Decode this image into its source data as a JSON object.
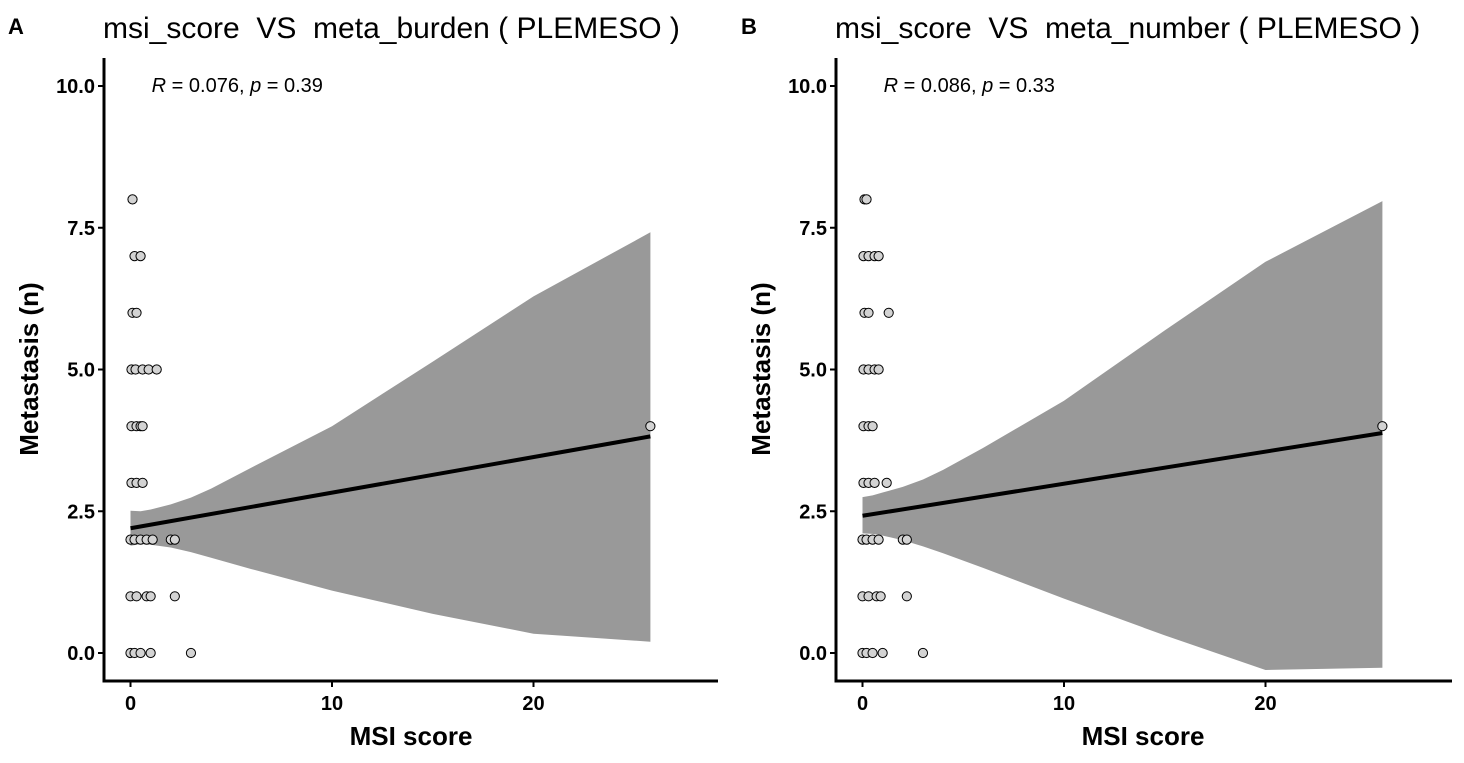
{
  "chart_data": [
    {
      "type": "scatter",
      "panel": "A",
      "title": "msi_score  VS  meta_burden ( PLEMESO )",
      "xlabel": "MSI score",
      "ylabel": "Metastasis (n)",
      "xlim": [
        -1.3,
        29
      ],
      "ylim": [
        -0.45,
        10.4
      ],
      "xticks": [
        0,
        10,
        20
      ],
      "xtick_labels": [
        "0",
        "10",
        "20"
      ],
      "yticks": [
        0,
        2.5,
        5,
        7.5,
        10
      ],
      "ytick_labels": [
        "0.0",
        "2.5",
        "5.0",
        "7.5",
        "10.0"
      ],
      "grid": false,
      "annotation": {
        "r_label": "R",
        "r_value": " = 0.076, ",
        "p_label": "p",
        "p_value": " = 0.39"
      },
      "points": [
        {
          "x": 0.1,
          "y": 8
        },
        {
          "x": 0.2,
          "y": 7
        },
        {
          "x": 0.5,
          "y": 7
        },
        {
          "x": 0.1,
          "y": 6
        },
        {
          "x": 0.3,
          "y": 6
        },
        {
          "x": 0.05,
          "y": 5
        },
        {
          "x": 0.25,
          "y": 5
        },
        {
          "x": 0.6,
          "y": 5
        },
        {
          "x": 0.9,
          "y": 5
        },
        {
          "x": 1.3,
          "y": 5
        },
        {
          "x": 0.05,
          "y": 4
        },
        {
          "x": 0.3,
          "y": 4
        },
        {
          "x": 0.5,
          "y": 4
        },
        {
          "x": 0.6,
          "y": 4
        },
        {
          "x": 0.05,
          "y": 3
        },
        {
          "x": 0.3,
          "y": 3
        },
        {
          "x": 0.6,
          "y": 3
        },
        {
          "x": 0.0,
          "y": 2
        },
        {
          "x": 0.2,
          "y": 2
        },
        {
          "x": 0.5,
          "y": 2
        },
        {
          "x": 0.8,
          "y": 2
        },
        {
          "x": 1.1,
          "y": 2
        },
        {
          "x": 2.0,
          "y": 2
        },
        {
          "x": 2.2,
          "y": 2
        },
        {
          "x": 0.0,
          "y": 1
        },
        {
          "x": 0.3,
          "y": 1
        },
        {
          "x": 0.8,
          "y": 1
        },
        {
          "x": 1.0,
          "y": 1
        },
        {
          "x": 2.2,
          "y": 1
        },
        {
          "x": 0.0,
          "y": 0
        },
        {
          "x": 0.2,
          "y": 0
        },
        {
          "x": 0.5,
          "y": 0
        },
        {
          "x": 1.0,
          "y": 0
        },
        {
          "x": 3.0,
          "y": 0
        },
        {
          "x": 25.8,
          "y": 4
        }
      ],
      "fit": {
        "x": [
          0,
          25.8
        ],
        "y": [
          2.2,
          3.82
        ]
      },
      "ci_band": {
        "x": [
          0,
          0.5,
          1,
          2,
          3,
          4,
          6,
          10,
          15,
          20,
          25.8
        ],
        "lower": [
          1.89,
          1.92,
          1.91,
          1.86,
          1.78,
          1.68,
          1.48,
          1.1,
          0.69,
          0.34,
          0.2
        ],
        "upper": [
          2.51,
          2.5,
          2.53,
          2.62,
          2.74,
          2.9,
          3.27,
          4.0,
          5.14,
          6.29,
          7.42
        ]
      }
    },
    {
      "type": "scatter",
      "panel": "B",
      "title": "msi_score  VS  meta_number ( PLEMESO )",
      "xlabel": "MSI score",
      "ylabel": "Metastasis (n)",
      "xlim": [
        -1.3,
        29
      ],
      "ylim": [
        -0.45,
        10.4
      ],
      "xticks": [
        0,
        10,
        20
      ],
      "xtick_labels": [
        "0",
        "10",
        "20"
      ],
      "yticks": [
        0,
        2.5,
        5,
        7.5,
        10
      ],
      "ytick_labels": [
        "0.0",
        "2.5",
        "5.0",
        "7.5",
        "10.0"
      ],
      "grid": false,
      "annotation": {
        "r_label": "R",
        "r_value": " = 0.086, ",
        "p_label": "p",
        "p_value": " = 0.33"
      },
      "points": [
        {
          "x": 0.1,
          "y": 8
        },
        {
          "x": 0.2,
          "y": 8
        },
        {
          "x": 0.05,
          "y": 7
        },
        {
          "x": 0.3,
          "y": 7
        },
        {
          "x": 0.6,
          "y": 7
        },
        {
          "x": 0.8,
          "y": 7
        },
        {
          "x": 0.1,
          "y": 6
        },
        {
          "x": 0.3,
          "y": 6
        },
        {
          "x": 1.3,
          "y": 6
        },
        {
          "x": 0.05,
          "y": 5
        },
        {
          "x": 0.3,
          "y": 5
        },
        {
          "x": 0.6,
          "y": 5
        },
        {
          "x": 0.8,
          "y": 5
        },
        {
          "x": 0.05,
          "y": 4
        },
        {
          "x": 0.3,
          "y": 4
        },
        {
          "x": 0.5,
          "y": 4
        },
        {
          "x": 0.05,
          "y": 3
        },
        {
          "x": 0.3,
          "y": 3
        },
        {
          "x": 0.6,
          "y": 3
        },
        {
          "x": 1.2,
          "y": 3
        },
        {
          "x": 0.0,
          "y": 2
        },
        {
          "x": 0.2,
          "y": 2
        },
        {
          "x": 0.5,
          "y": 2
        },
        {
          "x": 0.8,
          "y": 2
        },
        {
          "x": 2.0,
          "y": 2
        },
        {
          "x": 2.2,
          "y": 2
        },
        {
          "x": 0.0,
          "y": 1
        },
        {
          "x": 0.3,
          "y": 1
        },
        {
          "x": 0.7,
          "y": 1
        },
        {
          "x": 0.9,
          "y": 1
        },
        {
          "x": 2.2,
          "y": 1
        },
        {
          "x": 0.0,
          "y": 0
        },
        {
          "x": 0.2,
          "y": 0
        },
        {
          "x": 0.5,
          "y": 0
        },
        {
          "x": 1.0,
          "y": 0
        },
        {
          "x": 3.0,
          "y": 0
        },
        {
          "x": 25.8,
          "y": 4
        }
      ],
      "fit": {
        "x": [
          0,
          25.8
        ],
        "y": [
          2.42,
          3.88
        ]
      },
      "ci_band": {
        "x": [
          0,
          0.5,
          1,
          2,
          3,
          4,
          6,
          10,
          15,
          20,
          25.8
        ],
        "lower": [
          2.11,
          2.1,
          2.07,
          1.99,
          1.88,
          1.76,
          1.5,
          0.96,
          0.31,
          -0.3,
          -0.26
        ],
        "upper": [
          2.75,
          2.78,
          2.83,
          2.93,
          3.06,
          3.23,
          3.62,
          4.45,
          5.69,
          6.9,
          7.97
        ]
      }
    }
  ]
}
